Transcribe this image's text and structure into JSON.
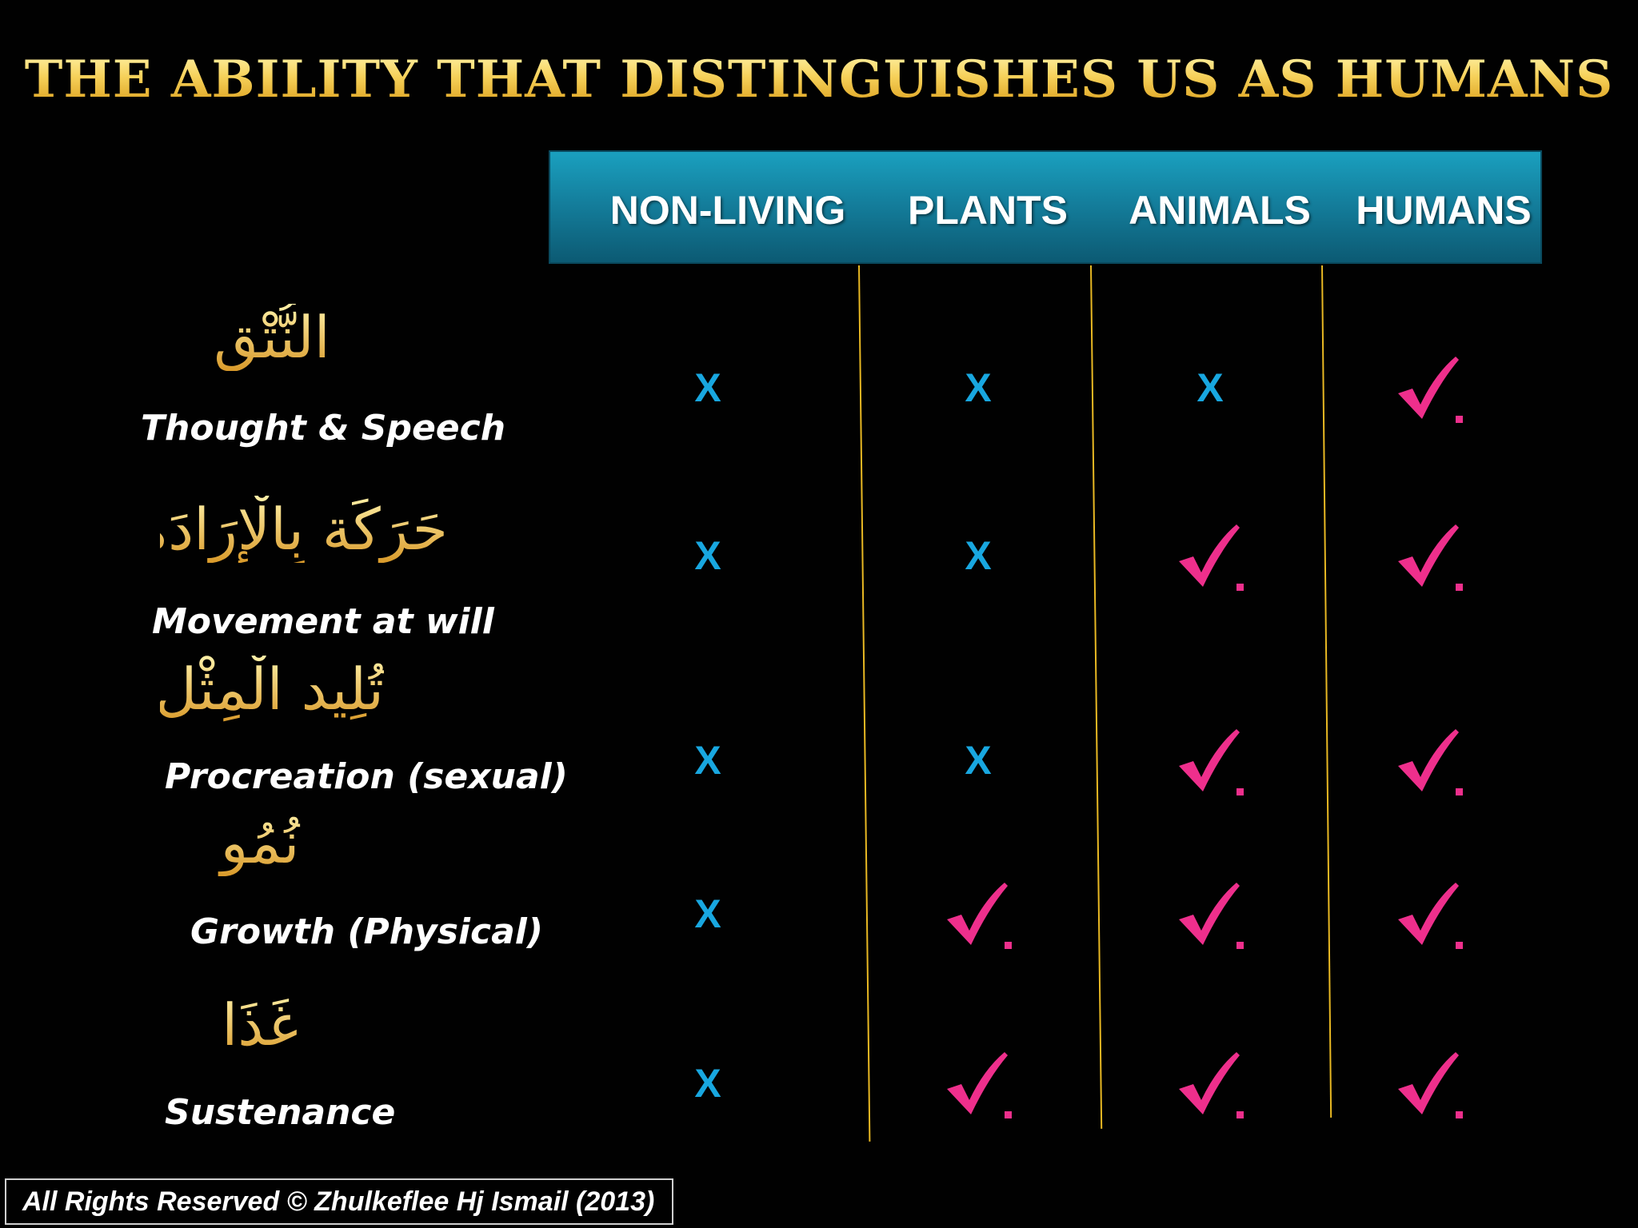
{
  "title": "THE ABILITY THAT DISTINGUISHES US AS HUMANS",
  "columns": [
    "NON-LIVING",
    "PLANTS",
    "ANIMALS",
    "HUMANS"
  ],
  "rows": [
    {
      "arabic": "النُّتْق",
      "english": "Thought & Speech",
      "marks": [
        "x",
        "x",
        "x",
        "check"
      ]
    },
    {
      "arabic": "حَرَكَة بِالْإِرَادَة",
      "english": "Movement at will",
      "marks": [
        "x",
        "x",
        "check",
        "check"
      ]
    },
    {
      "arabic": "تُلِيد الْمِثْل",
      "english": "Procreation (sexual)",
      "marks": [
        "x",
        "x",
        "check",
        "check"
      ]
    },
    {
      "arabic": "نُمُو",
      "english": "Growth (Physical)",
      "marks": [
        "x",
        "check",
        "check",
        "check"
      ]
    },
    {
      "arabic": "غَذَا",
      "english": "Sustenance",
      "marks": [
        "x",
        "check",
        "check",
        "check"
      ]
    }
  ],
  "symbols": {
    "x": "X"
  },
  "colors": {
    "title_gold": "#f2c43a",
    "header_teal": "#147f9d",
    "x_blue": "#18a7e0",
    "check_pink": "#ee2f8c",
    "line_gold": "#e8b823"
  },
  "footer": "All Rights Reserved © Zhulkeflee Hj Ismail (2013)"
}
